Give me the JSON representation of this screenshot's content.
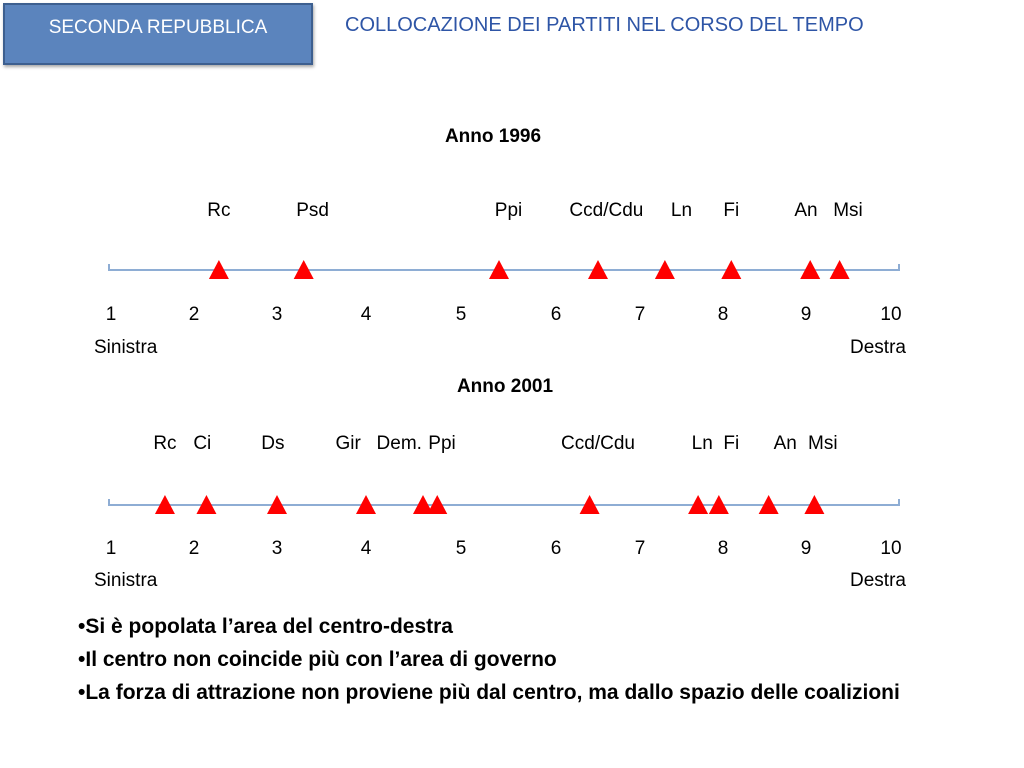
{
  "header": {
    "badge": "SECONDA REPUBBLICA",
    "title": "COLLOCAZIONE DEI PARTITI NEL CORSO DEL TEMPO"
  },
  "scale": {
    "ticks": [
      "1",
      "2",
      "3",
      "4",
      "5",
      "6",
      "7",
      "8",
      "9",
      "10"
    ],
    "left_label": "Sinistra",
    "right_label": "Destra",
    "line_color": "#8eadd4",
    "marker_color": "#ff0000"
  },
  "chart_data": [
    {
      "type": "scatter",
      "title": "Anno  1996",
      "xlim": [
        1,
        10
      ],
      "labels": [
        "Rc",
        "Psd",
        "Ppi",
        "Ccd/Cdu",
        "Ln",
        "Fi",
        "An",
        "Msi"
      ],
      "label_x": [
        2.3,
        3.4,
        5.5,
        6.6,
        7.5,
        8.1,
        9.0,
        9.5
      ],
      "markers": [
        2.3,
        3.3,
        5.4,
        6.5,
        7.3,
        8.1,
        9.05,
        9.4
      ]
    },
    {
      "type": "scatter",
      "title": "Anno  2001",
      "xlim": [
        1,
        10
      ],
      "labels": [
        "Rc",
        "Ci",
        "Ds",
        "Gir",
        "Dem.",
        "Ppi",
        "Ccd/Cdu",
        "Ln",
        "Fi",
        "An",
        "Msi"
      ],
      "label_x": [
        1.65,
        2.1,
        2.95,
        3.8,
        4.35,
        4.8,
        6.5,
        7.75,
        8.1,
        8.75,
        9.2
      ],
      "markers": [
        1.65,
        2.15,
        3.0,
        4.0,
        4.6,
        4.75,
        6.4,
        7.7,
        7.95,
        8.55,
        9.1
      ]
    }
  ],
  "bullets": [
    "Si è popolata l’area del centro-destra",
    "Il centro non coincide più con l’area di governo",
    "La forza di attrazione non proviene più dal centro, ma dallo spazio delle coalizioni"
  ]
}
